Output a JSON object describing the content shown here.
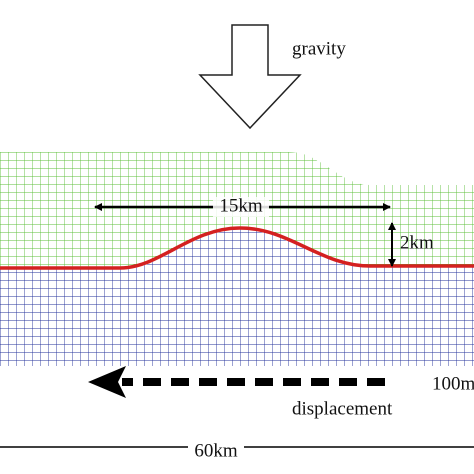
{
  "labels": {
    "gravity": "gravity",
    "width": "15km",
    "height": "2km",
    "amount": "100m",
    "displacement": "displacement",
    "length": "60km"
  }
}
